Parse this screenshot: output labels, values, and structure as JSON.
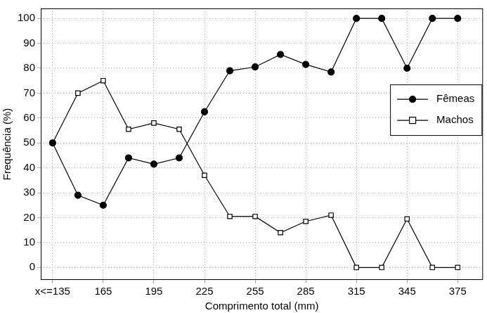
{
  "chart_data": {
    "type": "line",
    "x_label": "Comprimento total (mm)",
    "y_label": "Frequência (%)",
    "x": [
      135,
      150,
      165,
      180,
      195,
      210,
      225,
      240,
      255,
      270,
      285,
      300,
      315,
      330,
      345,
      360,
      375
    ],
    "series": [
      {
        "name": "Fêmeas",
        "color": "#000000",
        "marker": "circle",
        "values": [
          50,
          29,
          25,
          44,
          41.5,
          44,
          62.5,
          79,
          80.5,
          85.5,
          81.5,
          78.5,
          100,
          100,
          80,
          100,
          100
        ]
      },
      {
        "name": "Machos",
        "color": "#000000",
        "marker": "open_square",
        "values": [
          50,
          70,
          75,
          55.5,
          58,
          55.5,
          37,
          20.5,
          20.5,
          14,
          18.5,
          21,
          0,
          0,
          19.5,
          0,
          0
        ]
      }
    ],
    "xlim": [
      128,
      390
    ],
    "xticks": [
      {
        "value": 135,
        "label": "x<=135"
      },
      165,
      195,
      225,
      255,
      285,
      315,
      345,
      375
    ],
    "ylim": [
      -5,
      104
    ],
    "yticks": [
      0,
      10,
      20,
      30,
      40,
      50,
      60,
      70,
      80,
      90,
      100
    ],
    "grid": true,
    "legend": "right"
  }
}
